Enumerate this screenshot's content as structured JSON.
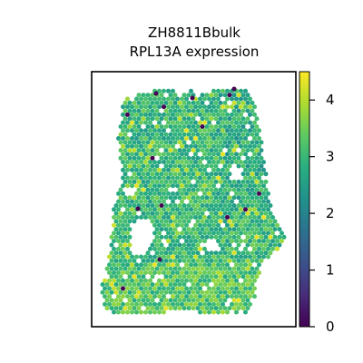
{
  "chart_data": {
    "type": "heatmap",
    "subtype": "spatial-spot-map",
    "title": "ZH8811Bbulk",
    "subtitle": "RPL13A expression",
    "xlabel": "",
    "ylabel": "",
    "axes_ticks_visible": false,
    "grid": false,
    "colormap": "viridis",
    "colorbar": {
      "position": "right",
      "range": [
        0,
        4.5
      ],
      "ticks": [
        0,
        1,
        2,
        3,
        4
      ],
      "tick_labels": [
        "0",
        "1",
        "2",
        "3",
        "4"
      ]
    },
    "value_distribution": {
      "typical": 3.0,
      "low_outliers": 0.0,
      "high_spots": 4.0
    }
  }
}
